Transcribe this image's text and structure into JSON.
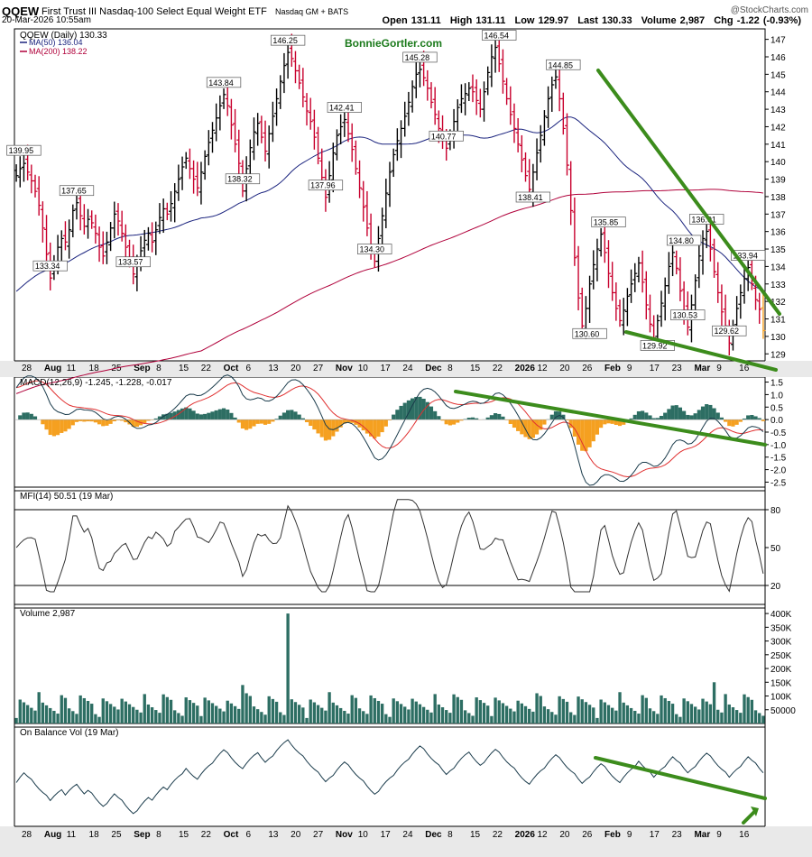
{
  "header": {
    "ticker": "QQEW",
    "full_name": "First Trust III Nasdaq-100 Select Equal Weight ETF",
    "exchange": "Nasdaq GM + BATS",
    "logo": "@StockCharts.com",
    "datetime": "20-Mar-2026 10:55am",
    "open_label": "Open",
    "open": "131.11",
    "high_label": "High",
    "high": "131.11",
    "low_label": "Low",
    "low": "129.97",
    "last_label": "Last",
    "last": "130.33",
    "volume_label": "Volume",
    "volume": "2,987",
    "chg_label": "Chg",
    "chg": "-1.22 (-0.93%)"
  },
  "watermark": "BonnieGortler.com",
  "colors": {
    "up_bar": "#000000",
    "down_bar": "#c8002d",
    "ma50": "#1a237e",
    "ma200": "#b0003a",
    "trendline": "#3c8c1c",
    "histogram_pos": "#2d6e63",
    "histogram_neg": "#f5a020",
    "volume": "#2d6e63",
    "last_bar": "#f5a020"
  },
  "x_axis_labels": [
    "28",
    "Aug",
    "11",
    "18",
    "25",
    "Sep",
    "8",
    "15",
    "22",
    "Oct",
    "6",
    "13",
    "20",
    "27",
    "Nov",
    "10",
    "17",
    "24",
    "Dec",
    "8",
    "15",
    "22",
    "2026",
    "12",
    "20",
    "26",
    "Feb",
    "9",
    "17",
    "23",
    "Mar",
    "9",
    "16"
  ],
  "chart_data": [
    {
      "type": "ohlc",
      "panel": "price",
      "legend_title": "QQEW (Daily) 130.33",
      "legend_ma50": "MA(50) 136.04",
      "legend_ma200": "MA(200) 138.22",
      "ylim": [
        128.6,
        147.6
      ],
      "y_ticks": [
        "129",
        "130",
        "131",
        "132",
        "133",
        "134",
        "135",
        "136",
        "137",
        "138",
        "139",
        "140",
        "141",
        "142",
        "143",
        "144",
        "145",
        "146",
        "147"
      ],
      "closes": [
        139.2,
        139.6,
        139.9,
        139.4,
        138.9,
        138.3,
        137.5,
        136.2,
        134.7,
        133.34,
        134.3,
        135.1,
        135.6,
        135.4,
        136.1,
        137.2,
        137.65,
        136.9,
        136.3,
        136.7,
        136.5,
        135.9,
        135.1,
        134.6,
        135.4,
        136.2,
        137.0,
        136.6,
        135.9,
        135.1,
        134.3,
        133.57,
        134.2,
        134.9,
        135.5,
        135.9,
        135.4,
        136.1,
        136.8,
        137.3,
        137.0,
        137.6,
        138.3,
        139.0,
        139.7,
        140.2,
        139.6,
        139.0,
        138.5,
        139.4,
        140.3,
        141.1,
        141.8,
        142.5,
        143.2,
        143.84,
        143.2,
        142.1,
        141.0,
        139.9,
        138.32,
        139.6,
        140.8,
        141.7,
        142.2,
        141.4,
        140.6,
        141.6,
        142.6,
        143.6,
        144.6,
        145.5,
        146.25,
        145.9,
        145.2,
        144.5,
        143.7,
        142.9,
        142.3,
        141.4,
        140.2,
        139.1,
        137.96,
        139.2,
        140.5,
        141.5,
        142.0,
        142.41,
        141.6,
        140.7,
        139.6,
        138.5,
        137.4,
        136.2,
        135.1,
        134.3,
        135.6,
        136.9,
        138.2,
        139.4,
        140.4,
        141.2,
        141.9,
        142.6,
        143.4,
        144.3,
        145.0,
        145.28,
        144.8,
        144.2,
        143.4,
        142.7,
        141.9,
        141.2,
        140.77,
        141.5,
        142.3,
        143.1,
        143.6,
        143.9,
        144.2,
        144.0,
        143.5,
        143.0,
        144.0,
        145.1,
        146.0,
        146.54,
        145.6,
        144.6,
        143.6,
        142.7,
        141.9,
        141.0,
        140.1,
        139.2,
        138.41,
        139.4,
        140.5,
        141.5,
        142.6,
        143.6,
        144.4,
        144.85,
        143.6,
        141.9,
        139.8,
        137.2,
        134.5,
        132.2,
        130.6,
        131.6,
        133.0,
        134.1,
        135.0,
        135.85,
        134.8,
        133.6,
        132.5,
        131.6,
        130.9,
        131.5,
        132.3,
        133.0,
        133.6,
        134.2,
        133.1,
        131.8,
        130.7,
        129.92,
        130.9,
        131.9,
        132.9,
        134.0,
        134.8,
        133.9,
        132.6,
        131.5,
        130.53,
        131.8,
        133.2,
        134.6,
        135.6,
        136.01,
        135.0,
        133.7,
        132.5,
        131.4,
        130.6,
        129.62,
        130.6,
        131.6,
        132.5,
        133.3,
        133.94,
        133.0,
        132.1,
        131.55,
        130.33
      ],
      "marked_values": [
        "139.95",
        "133.34",
        "137.65",
        "133.57",
        "143.84",
        "138.32",
        "146.25",
        "137.96",
        "142.41",
        "134.30",
        "145.28",
        "140.77",
        "146.54",
        "138.41",
        "144.85",
        "135.85",
        "130.60",
        "129.92",
        "134.80",
        "130.53",
        "136.01",
        "133.94",
        "129.62"
      ]
    },
    {
      "type": "macd",
      "panel": "macd",
      "legend": "MACD(12,26,9) -1.245, -1.228, -0.017",
      "ylim": [
        -2.7,
        1.7
      ],
      "y_ticks": [
        "1.5",
        "1.0",
        "0.5",
        "0.0",
        "-0.5",
        "-1.0",
        "-1.5",
        "-2.0",
        "-2.5"
      ],
      "y_values": [
        1.5,
        1.0,
        0.5,
        0.0,
        -0.5,
        -1.0,
        -1.5,
        -2.0,
        -2.5
      ]
    },
    {
      "type": "line",
      "panel": "mfi",
      "legend": "MFI(14) 50.51 (19 Mar)",
      "ylim": [
        5,
        95
      ],
      "y_ticks": [
        "80",
        "50",
        "20"
      ],
      "y_values": [
        80,
        50,
        20
      ]
    },
    {
      "type": "bar",
      "panel": "volume",
      "legend": "Volume 2,987",
      "ylim": [
        0,
        420000
      ],
      "y_ticks": [
        "400K",
        "350K",
        "300K",
        "250K",
        "200K",
        "150K",
        "100K",
        "50000"
      ],
      "y_values": [
        400000,
        350000,
        300000,
        250000,
        200000,
        150000,
        100000,
        50000
      ]
    },
    {
      "type": "line",
      "panel": "obv",
      "legend": "On Balance Vol (19 Mar)"
    }
  ]
}
